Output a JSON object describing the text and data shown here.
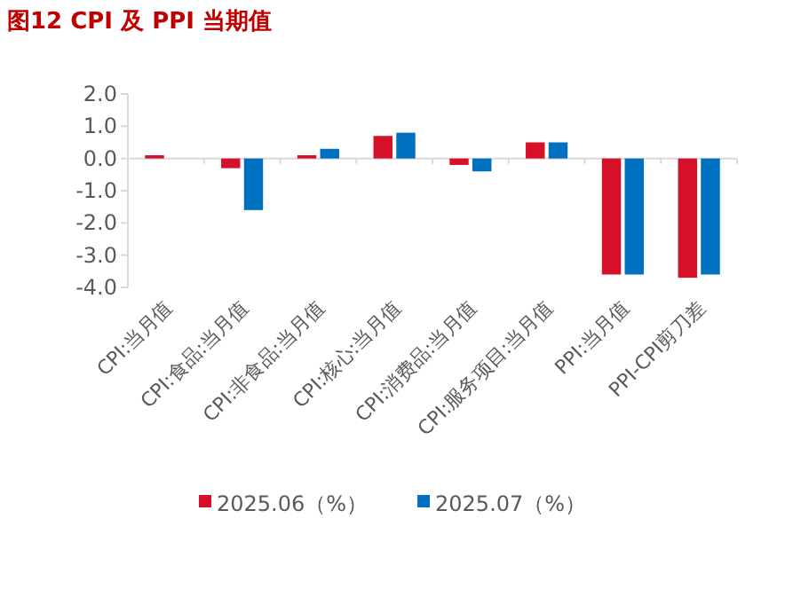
{
  "chart_data": {
    "type": "bar",
    "title": "图12  CPI 及 PPI 当期值",
    "categories": [
      "CPI:当月值",
      "CPI:食品:当月值",
      "CPI:非食品:当月值",
      "CPI:核心:当月值",
      "CPI:消费品:当月值",
      "CPI:服务项目:当月值",
      "PPI:当月值",
      "PPI-CPI剪刀差"
    ],
    "series": [
      {
        "name": "2025.06（%）",
        "color": "#d7102a",
        "values": [
          0.1,
          -0.3,
          0.1,
          0.7,
          -0.2,
          0.5,
          -3.6,
          -3.7
        ]
      },
      {
        "name": "2025.07（%）",
        "color": "#0070c0",
        "values": [
          0.0,
          -1.6,
          0.3,
          0.8,
          -0.4,
          0.5,
          -3.6,
          -3.6
        ]
      }
    ],
    "ylim": [
      -4,
      2
    ],
    "yticks": [
      {
        "value": 2,
        "label": "2.0"
      },
      {
        "value": 1,
        "label": "1.0"
      },
      {
        "value": 0,
        "label": "0.0"
      },
      {
        "value": -1,
        "label": "-1.0"
      },
      {
        "value": -2,
        "label": "-2.0"
      },
      {
        "value": -3,
        "label": "-3.0"
      },
      {
        "value": -4,
        "label": "-4.0"
      }
    ],
    "legend": "bottom"
  }
}
